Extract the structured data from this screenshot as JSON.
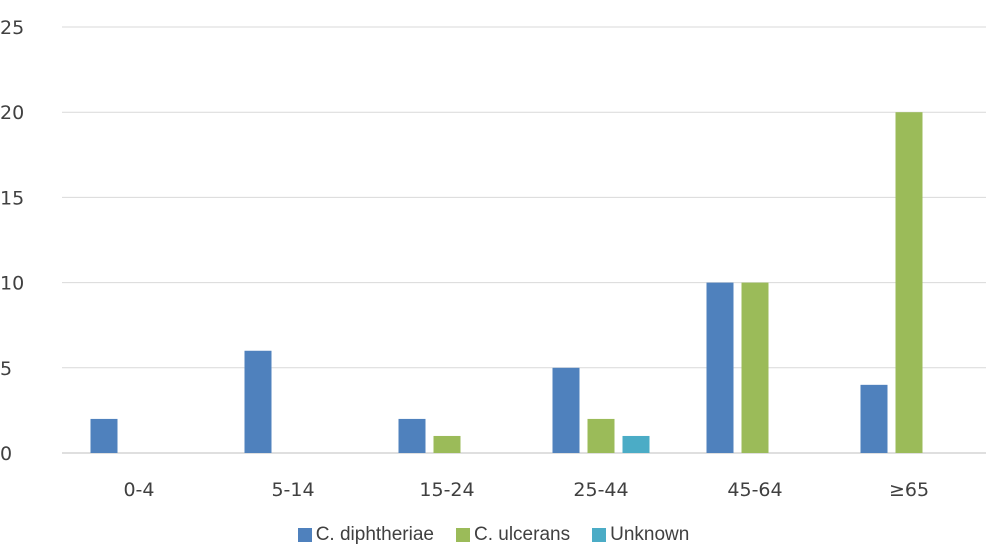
{
  "chart_data": {
    "type": "bar",
    "categories": [
      "0-4",
      "5-14",
      "15-24",
      "25-44",
      "45-64",
      "≥65"
    ],
    "series": [
      {
        "name": "C. diphtheriae",
        "color": "#4F81BD",
        "values": [
          2,
          6,
          2,
          5,
          10,
          4
        ]
      },
      {
        "name": "C. ulcerans",
        "color": "#9BBB59",
        "values": [
          0,
          0,
          1,
          2,
          10,
          20
        ]
      },
      {
        "name": "Unknown",
        "color": "#4BACC6",
        "values": [
          0,
          0,
          0,
          1,
          0,
          0
        ]
      }
    ],
    "yticks": [
      0,
      5,
      10,
      15,
      20,
      25
    ],
    "ylim": [
      0,
      25
    ],
    "grid": true,
    "legend": "bottom"
  }
}
